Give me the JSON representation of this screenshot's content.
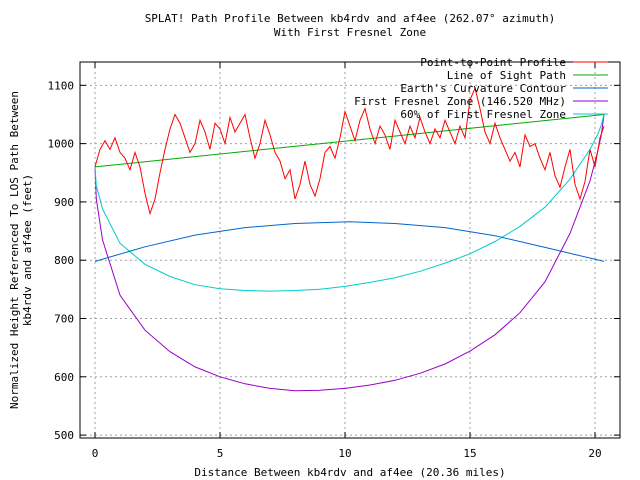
{
  "chart_data": {
    "type": "line",
    "title": "SPLAT! Path Profile Between kb4rdv and af4ee (262.07° azimuth)",
    "subtitle": "With First Fresnel Zone",
    "xlabel": "Distance Between kb4rdv and af4ee (20.36 miles)",
    "ylabel_line1": "Normalized Height Referenced To LOS Path Between",
    "ylabel_line2": "kb4rdv and af4ee (feet)",
    "xlim": [
      -0.6,
      21
    ],
    "ylim": [
      495,
      1140
    ],
    "xticks": [
      0,
      5,
      10,
      15,
      20
    ],
    "yticks": [
      500,
      600,
      700,
      800,
      900,
      1000,
      1100
    ],
    "grid": true,
    "legend_position": "top-right",
    "series": [
      {
        "name": "Point-to-Point Profile",
        "color": "#ff0000",
        "x": [
          0,
          0.2,
          0.4,
          0.6,
          0.8,
          1.0,
          1.2,
          1.4,
          1.6,
          1.8,
          2.0,
          2.2,
          2.4,
          2.6,
          2.8,
          3.0,
          3.2,
          3.4,
          3.6,
          3.8,
          4.0,
          4.2,
          4.4,
          4.6,
          4.8,
          5.0,
          5.2,
          5.4,
          5.6,
          5.8,
          6.0,
          6.2,
          6.4,
          6.6,
          6.8,
          7.0,
          7.2,
          7.4,
          7.6,
          7.8,
          8.0,
          8.2,
          8.4,
          8.6,
          8.8,
          9.0,
          9.2,
          9.4,
          9.6,
          9.8,
          10.0,
          10.2,
          10.4,
          10.6,
          10.8,
          11.0,
          11.2,
          11.4,
          11.6,
          11.8,
          12.0,
          12.2,
          12.4,
          12.6,
          12.8,
          13.0,
          13.2,
          13.4,
          13.6,
          13.8,
          14.0,
          14.2,
          14.4,
          14.6,
          14.8,
          15.0,
          15.2,
          15.4,
          15.6,
          15.8,
          16.0,
          16.2,
          16.4,
          16.6,
          16.8,
          17.0,
          17.2,
          17.4,
          17.6,
          17.8,
          18.0,
          18.2,
          18.4,
          18.6,
          18.8,
          19.0,
          19.2,
          19.4,
          19.6,
          19.8,
          20.0,
          20.2,
          20.36
        ],
        "y": [
          960,
          990,
          1005,
          990,
          1010,
          985,
          975,
          955,
          985,
          960,
          915,
          880,
          905,
          950,
          990,
          1025,
          1050,
          1035,
          1010,
          985,
          1000,
          1040,
          1020,
          990,
          1035,
          1025,
          1000,
          1045,
          1020,
          1035,
          1050,
          1010,
          975,
          1000,
          1040,
          1015,
          985,
          970,
          940,
          955,
          905,
          930,
          970,
          930,
          910,
          940,
          985,
          995,
          975,
          1010,
          1055,
          1030,
          1005,
          1040,
          1060,
          1025,
          1000,
          1030,
          1015,
          990,
          1040,
          1020,
          1000,
          1030,
          1010,
          1045,
          1020,
          1000,
          1025,
          1010,
          1040,
          1020,
          1000,
          1030,
          1010,
          1075,
          1095,
          1060,
          1020,
          1000,
          1035,
          1010,
          990,
          970,
          985,
          960,
          1015,
          995,
          1000,
          975,
          955,
          985,
          945,
          925,
          960,
          990,
          930,
          905,
          935,
          990,
          960,
          1010,
          1030
        ]
      },
      {
        "name": "Line of Sight Path",
        "color": "#00aa00",
        "x": [
          0,
          20.36
        ],
        "y": [
          960,
          1050
        ]
      },
      {
        "name": "Earth's Curvature Contour",
        "color": "#0066cc",
        "x": [
          0,
          2,
          4,
          6,
          8,
          10.18,
          12,
          14,
          16,
          18,
          20.36
        ],
        "y": [
          798,
          823,
          843,
          856,
          863,
          866,
          863,
          856,
          842,
          822,
          798
        ]
      },
      {
        "name": "First Fresnel Zone (146.520 MHz)",
        "color": "#9900cc",
        "x": [
          0,
          0.05,
          0.3,
          1,
          2,
          3,
          4,
          5,
          6,
          7,
          8,
          9,
          10,
          11,
          12,
          13,
          14,
          15,
          16,
          17,
          18,
          19,
          19.8,
          20.1,
          20.25,
          20.36
        ],
        "y": [
          960,
          905,
          835,
          740,
          680,
          643,
          617,
          600,
          588,
          580,
          576,
          577,
          580,
          586,
          594,
          606,
          622,
          644,
          672,
          710,
          763,
          846,
          936,
          985,
          1015,
          1050
        ]
      },
      {
        "name": "60% of First Fresnel Zone",
        "color": "#00cccc",
        "x": [
          0,
          0.05,
          0.3,
          1,
          2,
          3,
          4,
          5,
          6,
          7,
          8,
          9,
          10,
          11,
          12,
          13,
          14,
          15,
          16,
          17,
          18,
          19,
          19.8,
          20.1,
          20.25,
          20.36
        ],
        "y": [
          960,
          928,
          888,
          829,
          793,
          772,
          758,
          751,
          748,
          747,
          748,
          750,
          755,
          762,
          770,
          781,
          795,
          811,
          832,
          858,
          891,
          939,
          990,
          1015,
          1032,
          1050
        ]
      }
    ]
  }
}
